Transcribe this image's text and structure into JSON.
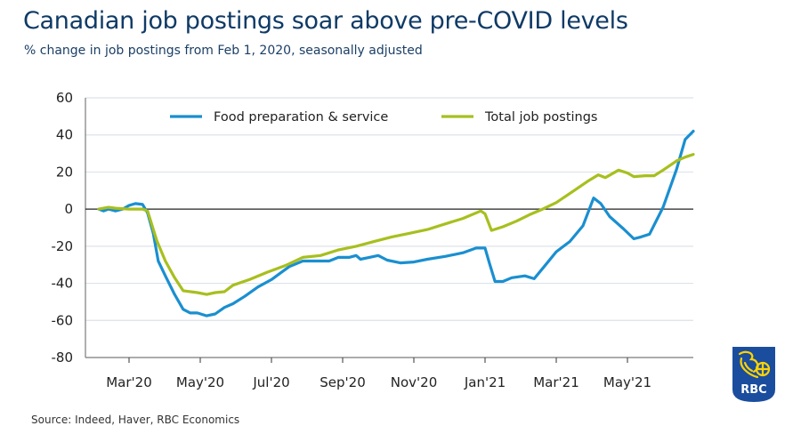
{
  "header": {
    "title": "Canadian job postings soar above pre-COVID levels",
    "subtitle": "% change in job postings from Feb 1, 2020, seasonally adjusted"
  },
  "footer": {
    "source": "Source: Indeed, Haver, RBC Economics"
  },
  "logo": {
    "text": "RBC",
    "colors": {
      "background": "#1a4d9e",
      "emblem": "#ffd200",
      "text": "#ffffff"
    }
  },
  "chart_data": {
    "type": "line",
    "title": "Canadian job postings soar above pre-COVID levels",
    "subtitle": "% change in job postings from Feb 1, 2020, seasonally adjusted",
    "xlabel": "",
    "ylabel": "",
    "x_unit": "months since Feb 1, 2020",
    "xlim": [
      0,
      17
    ],
    "ylim": [
      -80,
      60
    ],
    "yticks": [
      60,
      40,
      20,
      0,
      -20,
      -40,
      -60,
      -80
    ],
    "xticks": [
      {
        "x": 1,
        "label": "Mar'20"
      },
      {
        "x": 3,
        "label": "May'20"
      },
      {
        "x": 5,
        "label": "Jul'20"
      },
      {
        "x": 7,
        "label": "Sep'20"
      },
      {
        "x": 9,
        "label": "Nov'20"
      },
      {
        "x": 11,
        "label": "Jan'21"
      },
      {
        "x": 13,
        "label": "Mar'21"
      },
      {
        "x": 15,
        "label": "May'21"
      }
    ],
    "grid": true,
    "zero_line": true,
    "legend_position": "top-center",
    "series": [
      {
        "name": "Food preparation & service",
        "color": "#1a8fd0",
        "points": [
          [
            0.15,
            0
          ],
          [
            0.28,
            -1
          ],
          [
            0.42,
            0
          ],
          [
            0.62,
            -1
          ],
          [
            0.82,
            0
          ],
          [
            1.0,
            2
          ],
          [
            1.18,
            3
          ],
          [
            1.38,
            2.5
          ],
          [
            1.52,
            -2
          ],
          [
            1.68,
            -13
          ],
          [
            1.82,
            -28
          ],
          [
            2.02,
            -36
          ],
          [
            2.28,
            -46
          ],
          [
            2.52,
            -54
          ],
          [
            2.72,
            -56
          ],
          [
            2.92,
            -56
          ],
          [
            3.18,
            -57.5
          ],
          [
            3.42,
            -56.5
          ],
          [
            3.68,
            -53
          ],
          [
            3.92,
            -51
          ],
          [
            4.25,
            -47
          ],
          [
            4.62,
            -42
          ],
          [
            5.0,
            -38
          ],
          [
            5.25,
            -34.5
          ],
          [
            5.5,
            -31
          ],
          [
            5.88,
            -28
          ],
          [
            6.25,
            -28
          ],
          [
            6.62,
            -28
          ],
          [
            6.88,
            -26
          ],
          [
            7.18,
            -26
          ],
          [
            7.38,
            -25
          ],
          [
            7.5,
            -27
          ],
          [
            7.75,
            -26
          ],
          [
            8.0,
            -25
          ],
          [
            8.25,
            -27.5
          ],
          [
            8.62,
            -29
          ],
          [
            9.0,
            -28.5
          ],
          [
            9.38,
            -27
          ],
          [
            9.88,
            -25.5
          ],
          [
            10.38,
            -23.5
          ],
          [
            10.75,
            -21
          ],
          [
            11.0,
            -21
          ],
          [
            11.12,
            -29
          ],
          [
            11.28,
            -39
          ],
          [
            11.5,
            -39
          ],
          [
            11.75,
            -37
          ],
          [
            12.12,
            -36
          ],
          [
            12.38,
            -37.5
          ],
          [
            12.68,
            -30.5
          ],
          [
            13.0,
            -23
          ],
          [
            13.38,
            -17.5
          ],
          [
            13.75,
            -9
          ],
          [
            14.05,
            6
          ],
          [
            14.25,
            3
          ],
          [
            14.5,
            -4
          ],
          [
            14.88,
            -10.5
          ],
          [
            15.18,
            -16
          ],
          [
            15.38,
            -15
          ],
          [
            15.62,
            -13.5
          ],
          [
            16.0,
            1
          ],
          [
            16.38,
            21.5
          ],
          [
            16.62,
            37.5
          ],
          [
            16.85,
            42
          ]
        ]
      },
      {
        "name": "Total job postings",
        "color": "#a8bf1e",
        "points": [
          [
            0.15,
            0
          ],
          [
            0.42,
            1
          ],
          [
            0.62,
            0.5
          ],
          [
            1.0,
            0
          ],
          [
            1.38,
            0
          ],
          [
            1.52,
            -1
          ],
          [
            1.78,
            -17
          ],
          [
            2.02,
            -28
          ],
          [
            2.28,
            -37
          ],
          [
            2.52,
            -44
          ],
          [
            2.92,
            -45
          ],
          [
            3.18,
            -46
          ],
          [
            3.42,
            -45
          ],
          [
            3.68,
            -44.5
          ],
          [
            3.92,
            -41
          ],
          [
            4.38,
            -38
          ],
          [
            4.88,
            -34
          ],
          [
            5.38,
            -30.5
          ],
          [
            5.88,
            -26
          ],
          [
            6.38,
            -25
          ],
          [
            6.88,
            -22
          ],
          [
            7.38,
            -20
          ],
          [
            7.88,
            -17.5
          ],
          [
            8.38,
            -15
          ],
          [
            8.88,
            -13
          ],
          [
            9.38,
            -11
          ],
          [
            9.88,
            -8
          ],
          [
            10.38,
            -5
          ],
          [
            10.88,
            -1
          ],
          [
            11.0,
            -2.5
          ],
          [
            11.18,
            -11.5
          ],
          [
            11.5,
            -9.5
          ],
          [
            11.88,
            -6.5
          ],
          [
            12.25,
            -3
          ],
          [
            12.62,
            0
          ],
          [
            13.0,
            3.5
          ],
          [
            13.5,
            10
          ],
          [
            13.88,
            15
          ],
          [
            14.18,
            18.5
          ],
          [
            14.38,
            17
          ],
          [
            14.75,
            21
          ],
          [
            15.0,
            19.5
          ],
          [
            15.18,
            17.5
          ],
          [
            15.5,
            18
          ],
          [
            15.75,
            18
          ],
          [
            16.0,
            21
          ],
          [
            16.38,
            26
          ],
          [
            16.62,
            28
          ],
          [
            16.85,
            29.5
          ]
        ]
      }
    ]
  }
}
